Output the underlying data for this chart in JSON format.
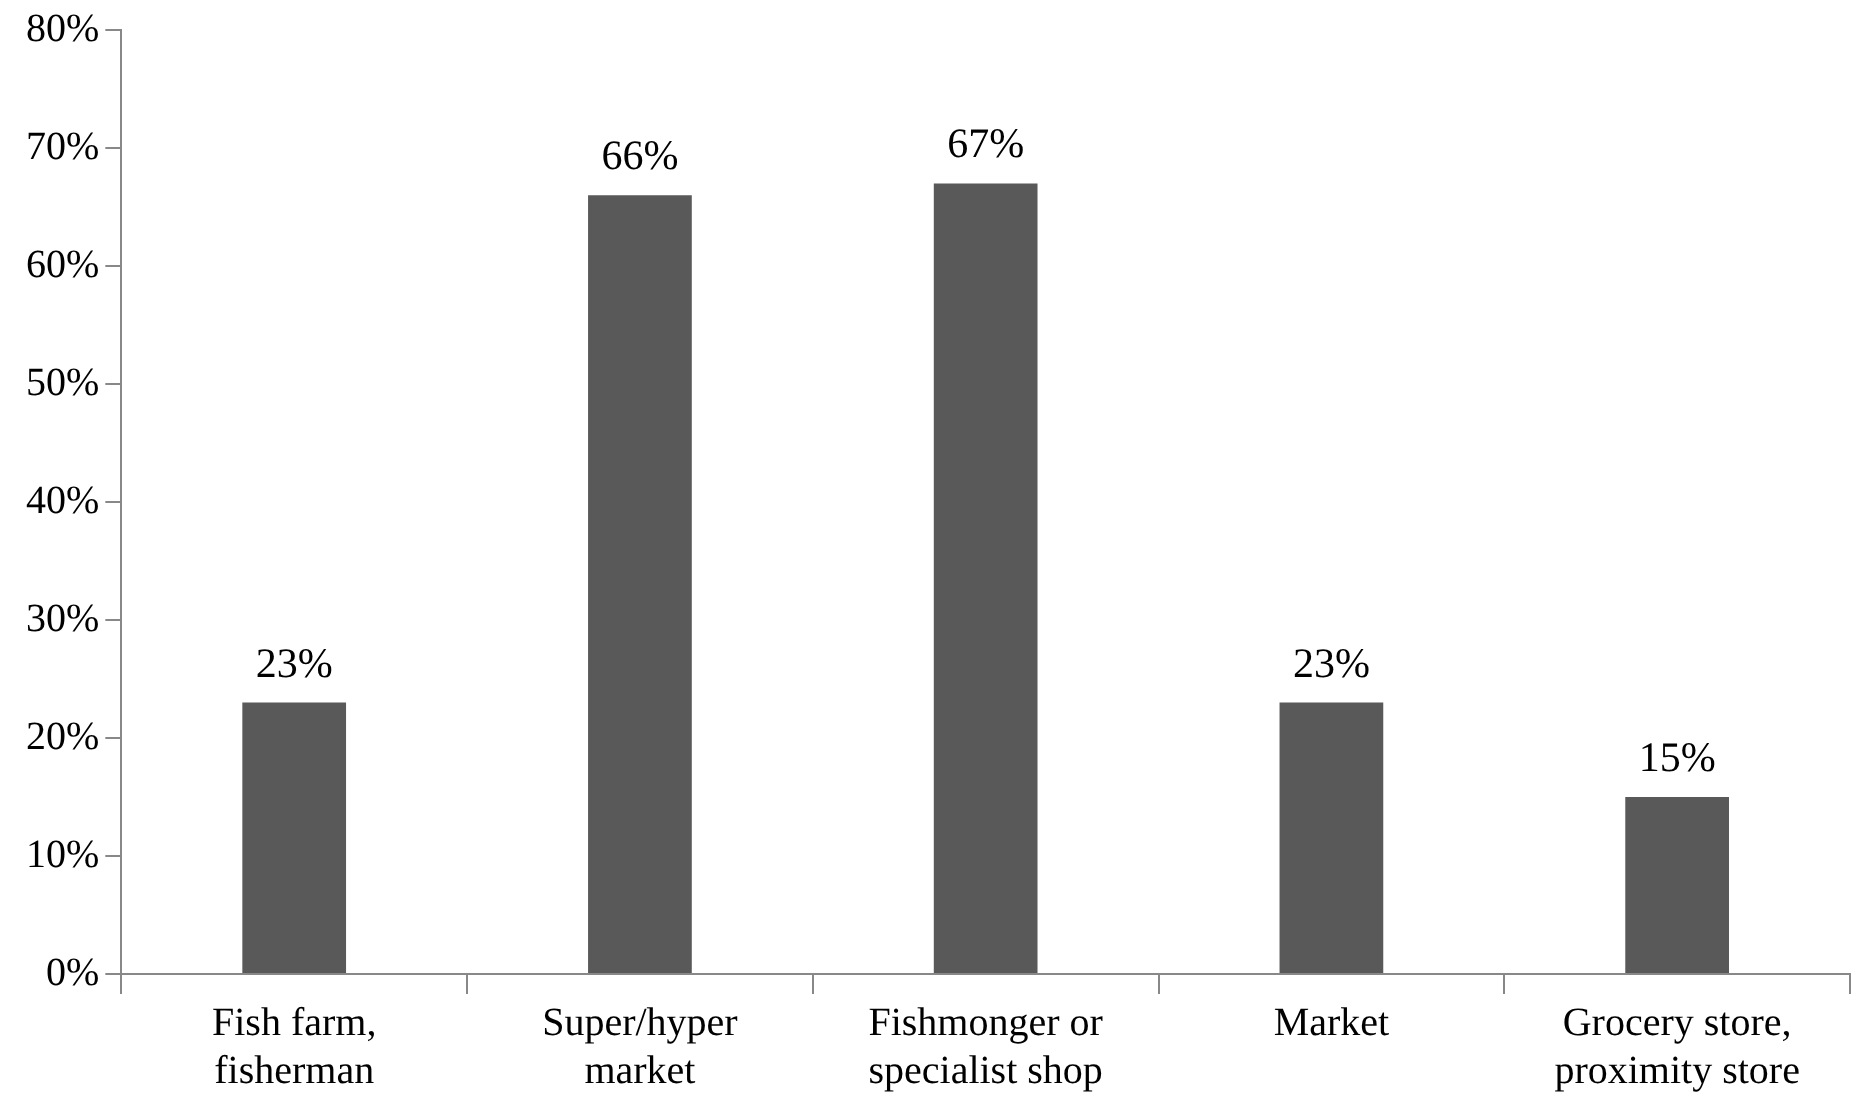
{
  "chart_data": {
    "type": "bar",
    "categories": [
      "Fish farm, fisherman",
      "Super/hyper market",
      "Fishmonger or specialist shop",
      "Market",
      "Grocery store, proximity store"
    ],
    "values": [
      23,
      66,
      67,
      23,
      15
    ],
    "value_labels": [
      "23%",
      "66%",
      "67%",
      "23%",
      "15%"
    ],
    "color": "#595959",
    "ylim": [
      0,
      80
    ],
    "yticks": [
      {
        "value": 0,
        "label": "0%"
      },
      {
        "value": 10,
        "label": "10%"
      },
      {
        "value": 20,
        "label": "20%"
      },
      {
        "value": 30,
        "label": "30%"
      },
      {
        "value": 40,
        "label": "40%"
      },
      {
        "value": 50,
        "label": "50%"
      },
      {
        "value": 60,
        "label": "60%"
      },
      {
        "value": 70,
        "label": "70%"
      },
      {
        "value": 80,
        "label": "80%"
      }
    ],
    "grid": false,
    "legend": false
  }
}
